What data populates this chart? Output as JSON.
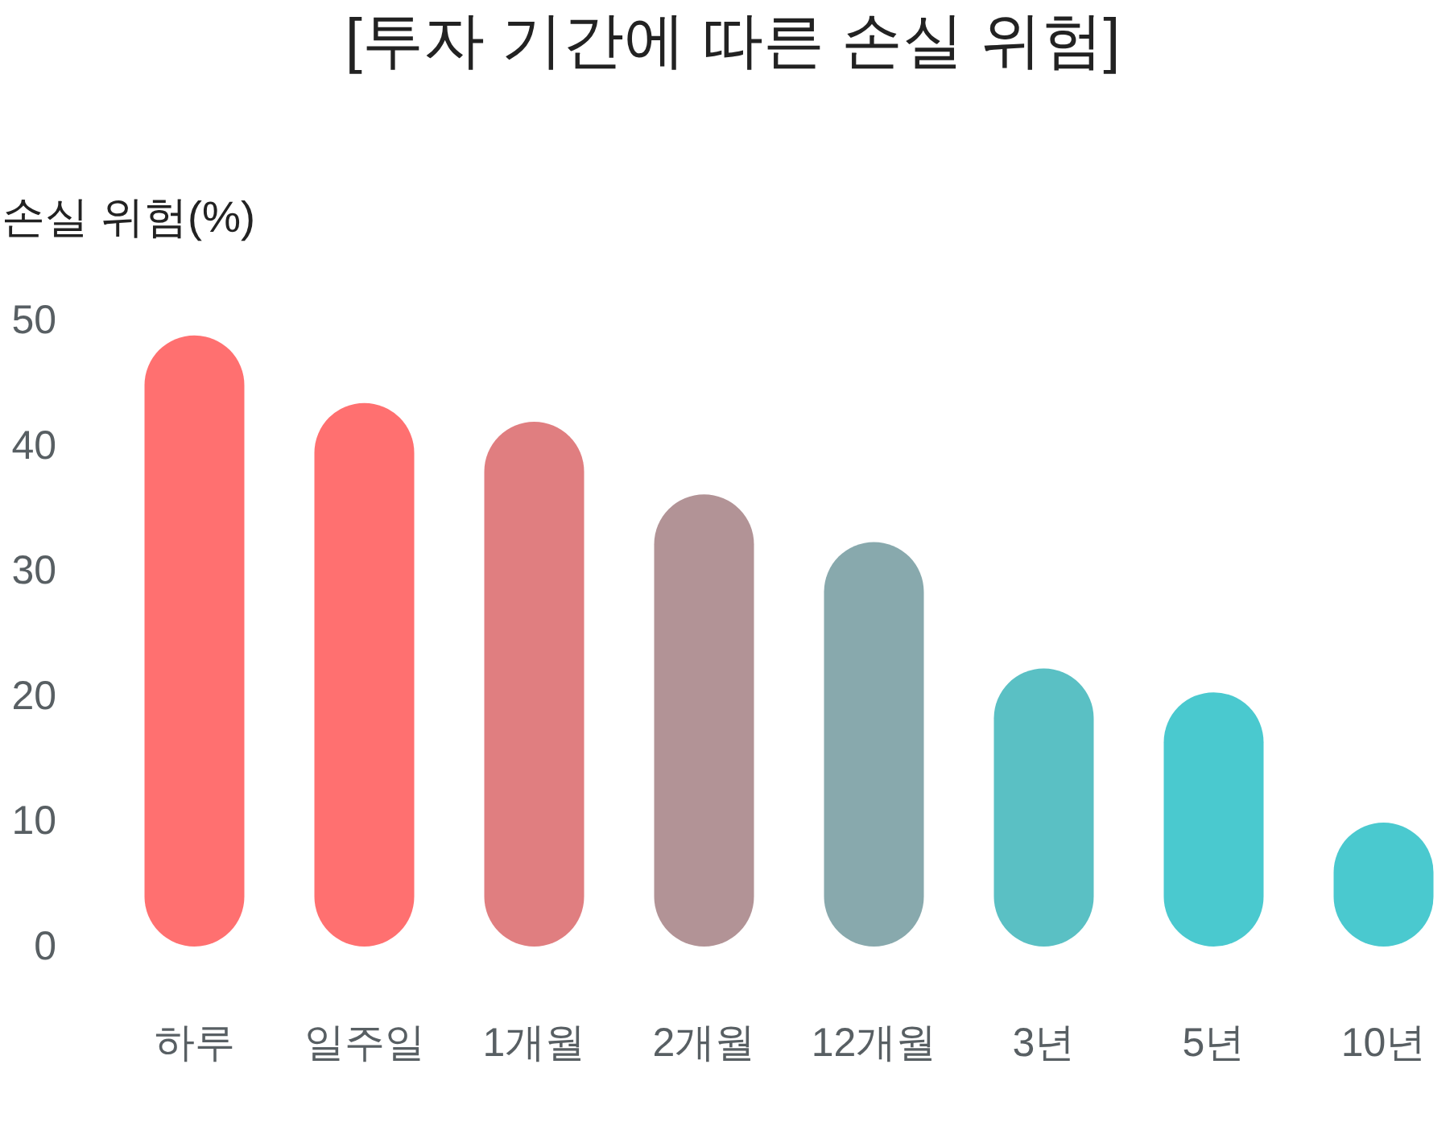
{
  "chart_data": {
    "type": "bar",
    "title": "[투자 기간에 따른 손실 위험]",
    "ylabel": "손실 위험(%)",
    "categories": [
      "하루",
      "일주일",
      "1개월",
      "2개월",
      "12개월",
      "3년",
      "5년",
      "10년"
    ],
    "values": [
      48.8,
      43.4,
      41.9,
      36.1,
      32.3,
      22.2,
      20.3,
      9.9
    ],
    "colors": [
      "#ff7070",
      "#ff7070",
      "#e07e80",
      "#b29396",
      "#88a9ad",
      "#5ac0c4",
      "#4ac9cf",
      "#4ac9cf"
    ],
    "ylim": [
      0,
      50
    ],
    "yticks": [
      0,
      10,
      20,
      30,
      40,
      50
    ]
  }
}
